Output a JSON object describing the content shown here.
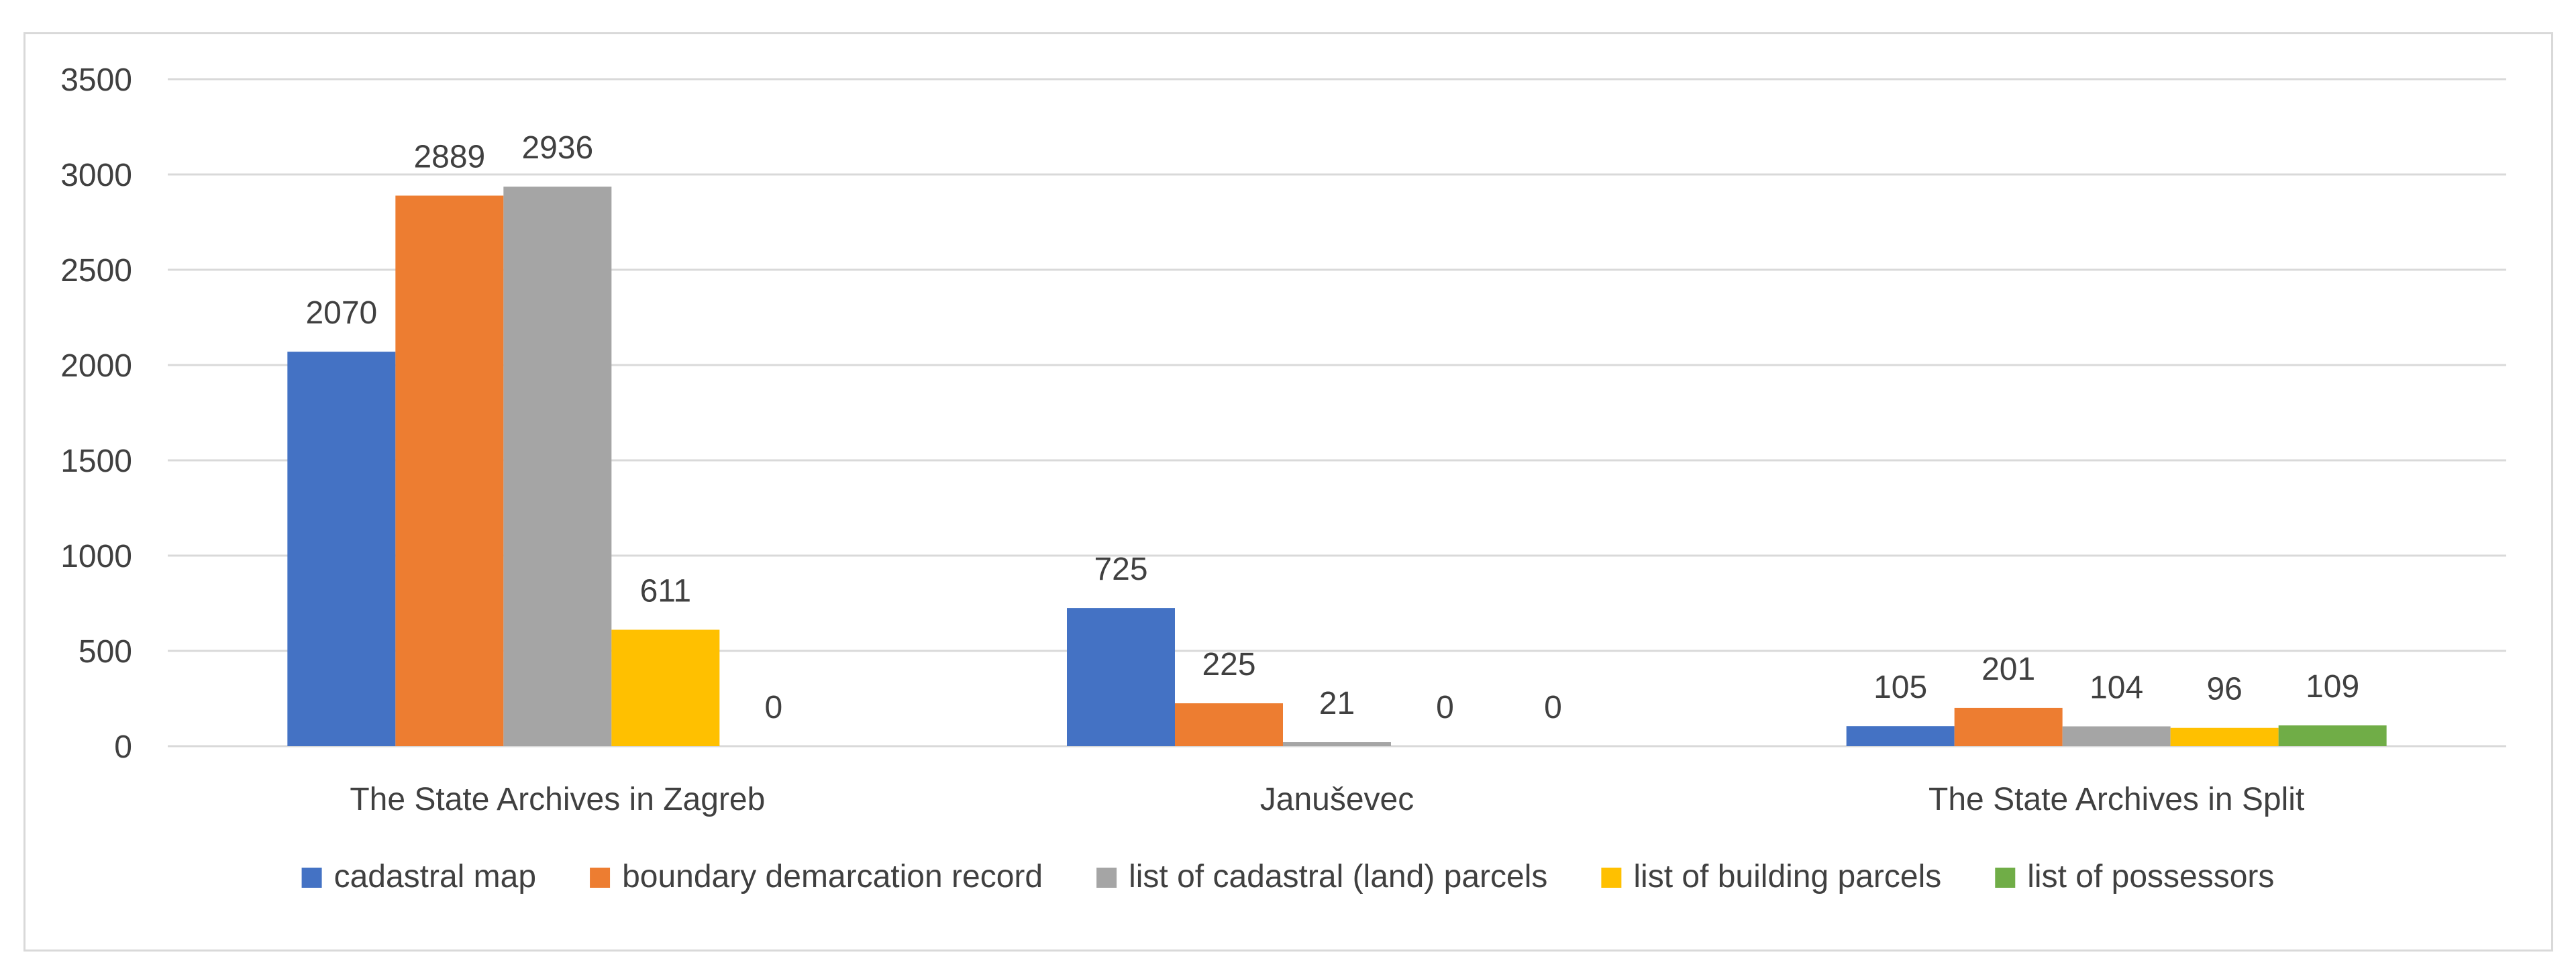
{
  "chart_data": {
    "type": "bar",
    "title": "",
    "xlabel": "",
    "ylabel": "",
    "ylim": [
      0,
      3500
    ],
    "yticks": [
      0,
      500,
      1000,
      1500,
      2000,
      2500,
      3000,
      3500
    ],
    "grid": true,
    "legend_position": "bottom",
    "categories": [
      "The State Archives in Zagreb",
      "Januševec",
      "The State Archives in Split"
    ],
    "series": [
      {
        "name": "cadastral map",
        "color": "#4472c4",
        "values": [
          2070,
          725,
          105
        ]
      },
      {
        "name": "boundary demarcation record",
        "color": "#ed7d31",
        "values": [
          2889,
          225,
          201
        ]
      },
      {
        "name": "list of cadastral (land) parcels",
        "color": "#a5a5a5",
        "values": [
          2936,
          21,
          104
        ]
      },
      {
        "name": "list of building parcels",
        "color": "#ffc000",
        "values": [
          611,
          0,
          96
        ]
      },
      {
        "name": "list of possessors",
        "color": "#70ad47",
        "values": [
          0,
          0,
          109
        ]
      }
    ]
  }
}
